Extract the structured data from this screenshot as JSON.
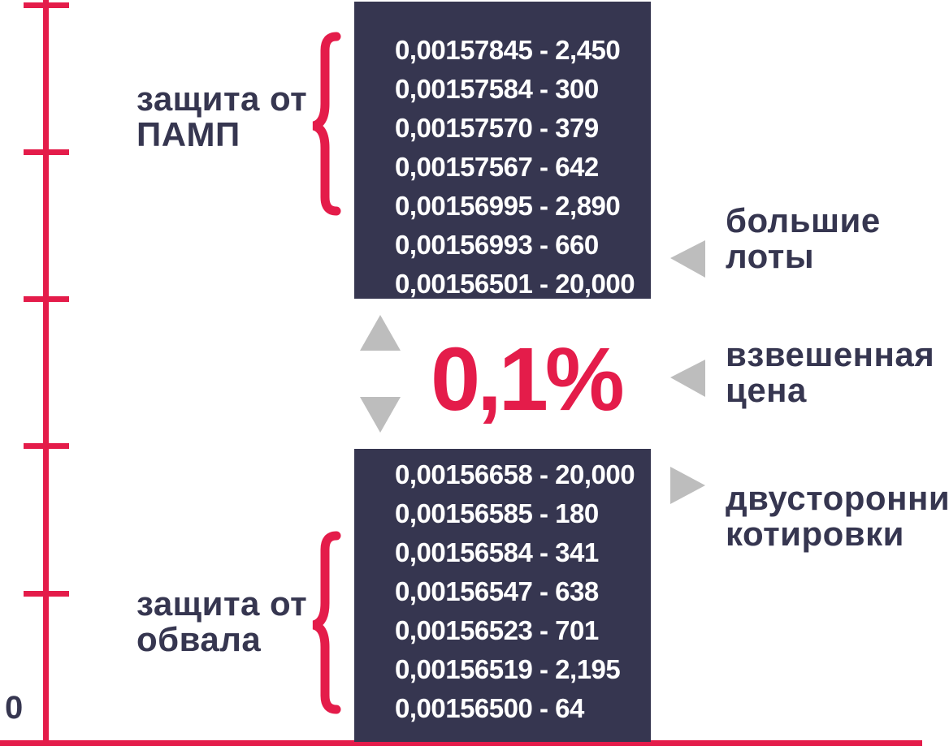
{
  "asks": [
    "0,00157845 - 2,450",
    "0,00157584 - 300",
    "0,00157570 - 379",
    "0,00157567 - 642",
    "0,00156995 - 2,890",
    "0,00156993 - 660",
    "0,00156501 - 20,000"
  ],
  "bids": [
    "0,00156658 - 20,000",
    "0,00156585 - 180",
    "0,00156584 - 341",
    "0,00156547 - 638",
    "0,00156523 - 701",
    "0,00156519 - 2,195",
    "0,00156500 - 64"
  ],
  "spread": "0,1%",
  "axis_zero": "0",
  "labels": {
    "pump_line1": "защита от",
    "pump_line2": "ПАМП",
    "dump_line1": "защита от",
    "dump_line2": "обвала",
    "big_lots_line1": "большие",
    "big_lots_line2": "лоты",
    "weighted_line1": "взвешенная",
    "weighted_line2": "цена",
    "twoway_line1": "двусторонние",
    "twoway_line2": "котировки"
  },
  "colors": {
    "accent_red": "#e41c4a",
    "navy": "#363650",
    "arrow_gray": "#bdbdbd"
  }
}
